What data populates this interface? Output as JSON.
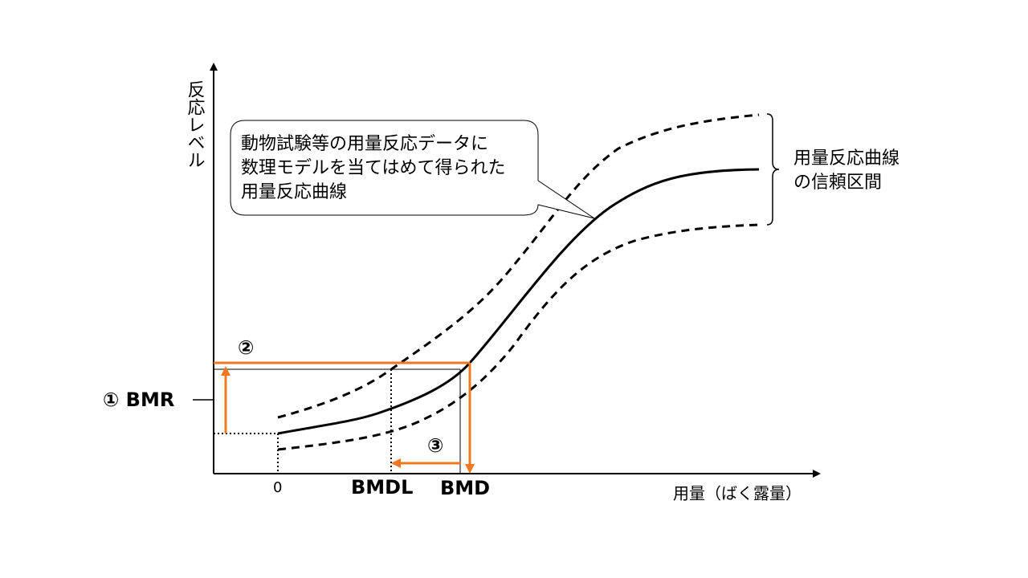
{
  "y_axis_label": "反応レベル",
  "x_axis_label": "用量（ばく露量）",
  "callout": [
    "動物試験等の用量反応データに",
    "数理モデルを当てはめて得られた",
    "用量反応曲線"
  ],
  "interval_label": [
    "用量反応曲線",
    "の信頼区間"
  ],
  "zero_label": "0",
  "bmdl_label": "BMDL",
  "bmd_label": "BMD",
  "bmr_label": "① BMR",
  "step2_label": "②",
  "step3_label": "③"
}
